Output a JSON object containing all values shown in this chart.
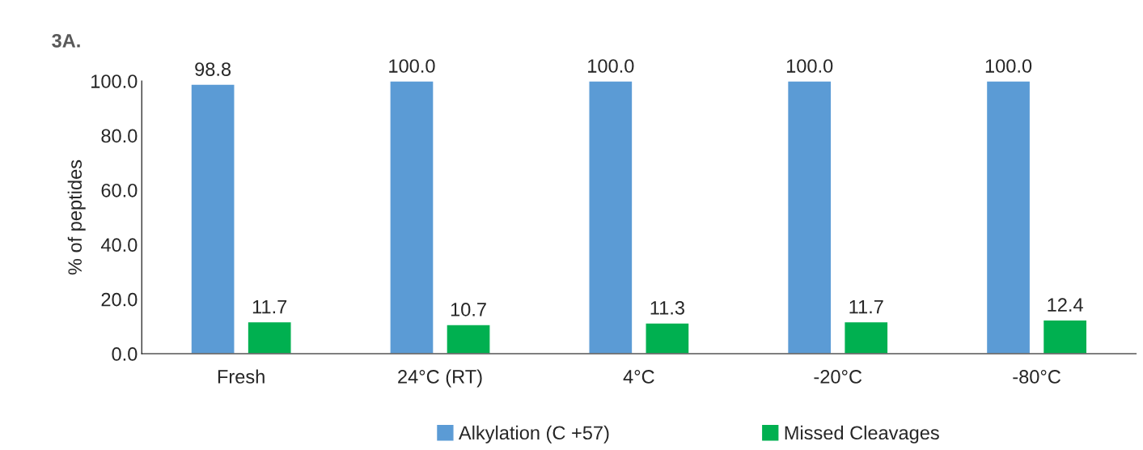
{
  "chart_data": {
    "type": "bar",
    "title": "3A.",
    "ylabel": "% of peptides",
    "categories": [
      "Fresh",
      "24°C (RT)",
      "4°C",
      "-20°C",
      "-80°C"
    ],
    "series": [
      {
        "name": "Alkylation (C +57)",
        "color": "#5b9bd5",
        "values": [
          98.8,
          100.0,
          100.0,
          100.0,
          100.0
        ],
        "value_labels": [
          "98.8",
          "100.0",
          "100.0",
          "100.0",
          "100.0"
        ]
      },
      {
        "name": "Missed Cleavages",
        "color": "#00b050",
        "values": [
          11.7,
          10.7,
          11.3,
          11.7,
          12.4
        ],
        "value_labels": [
          "11.7",
          "10.7",
          "11.3",
          "11.7",
          "12.4"
        ]
      }
    ],
    "ylim": [
      0,
      100
    ],
    "yticks": [
      {
        "value": 0,
        "label": "0.0"
      },
      {
        "value": 20,
        "label": "20.0"
      },
      {
        "value": 40,
        "label": "40.0"
      },
      {
        "value": 60,
        "label": "60.0"
      },
      {
        "value": 80,
        "label": "80.0"
      },
      {
        "value": 100,
        "label": "100.0"
      }
    ],
    "grid": false,
    "legend": "bottom"
  }
}
